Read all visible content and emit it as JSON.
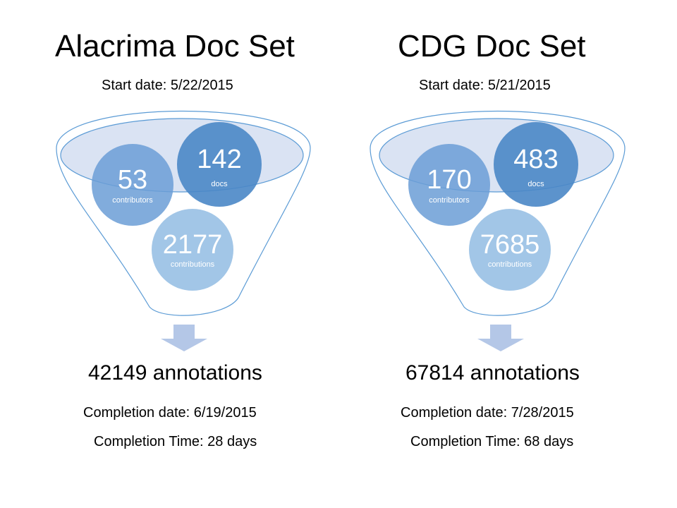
{
  "doc_sets": [
    {
      "title": "Alacrima Doc Set",
      "start_date": "Start date: 5/22/2015",
      "contributors": {
        "value": "53",
        "label": "contributors"
      },
      "docs": {
        "value": "142",
        "label": "docs"
      },
      "contributions": {
        "value": "2177",
        "label": "contributions"
      },
      "annotations": "42149 annotations",
      "completion_date": "Completion date: 6/19/2015",
      "completion_time": "Completion Time: 28 days"
    },
    {
      "title": "CDG Doc Set",
      "start_date": "Start date: 5/21/2015",
      "contributors": {
        "value": "170",
        "label": "contributors"
      },
      "docs": {
        "value": "483",
        "label": "docs"
      },
      "contributions": {
        "value": "7685",
        "label": "contributions"
      },
      "annotations": "67814 annotations",
      "completion_date": "Completion date: 7/28/2015",
      "completion_time": "Completion Time: 68 days"
    }
  ],
  "colors": {
    "funnel_outline": "#5b9bd5",
    "funnel_rim_fill": "#dae3f3",
    "circle_dark": "#4a87c7",
    "circle_medium": "#6b9ed6",
    "circle_light": "#9dc3e6",
    "arrow": "#b4c7e7"
  }
}
